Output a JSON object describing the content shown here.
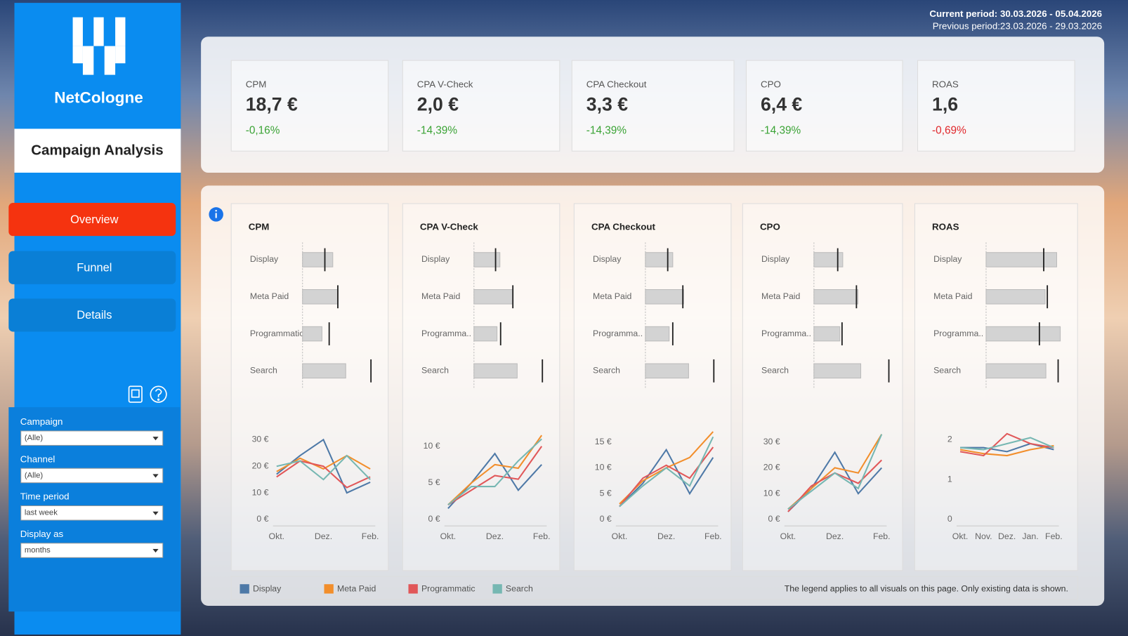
{
  "header": {
    "current": "Current period: 30.03.2026 - 05.04.2026",
    "previous": "Previous period:23.03.2026 - 29.03.2026"
  },
  "sidebar": {
    "brand": "NetCologne",
    "title": "Campaign Analysis",
    "nav": [
      "Overview",
      "Funnel",
      "Details"
    ],
    "filters": [
      {
        "label": "Campaign",
        "value": "(Alle)"
      },
      {
        "label": "Channel",
        "value": "(Alle)"
      },
      {
        "label": "Time period",
        "value": "last week"
      },
      {
        "label": "Display as",
        "value": "months"
      }
    ]
  },
  "kpis": [
    {
      "label": "CPM",
      "value": "18,7 €",
      "change": "-0,16%",
      "color": "#3aa335"
    },
    {
      "label": "CPA V-Check",
      "value": "2,0 €",
      "change": "-14,39%",
      "color": "#3aa335"
    },
    {
      "label": "CPA Checkout",
      "value": "3,3 €",
      "change": "-14,39%",
      "color": "#3aa335"
    },
    {
      "label": "CPO",
      "value": "6,4 €",
      "change": "-14,39%",
      "color": "#3aa335"
    },
    {
      "label": "ROAS",
      "value": "1,6",
      "change": "-0,69%",
      "color": "#e0262a"
    }
  ],
  "panels": [
    {
      "title": "CPM",
      "bullet": {
        "categories": [
          "Display",
          "Meta Paid",
          "Programmatic",
          "Search"
        ],
        "values": [
          42,
          49,
          27,
          60
        ],
        "targets": [
          31,
          49,
          37,
          95
        ],
        "xlim": [
          0,
          110
        ]
      },
      "line": {
        "categories": [
          "Okt.",
          null,
          "Dez.",
          null,
          "Feb."
        ],
        "ylim": [
          0,
          33
        ],
        "yticks": [
          {
            "value": 0,
            "label": "0 €"
          },
          {
            "value": 10,
            "label": "10 €"
          },
          {
            "value": 20,
            "label": "20 €"
          },
          {
            "value": 30,
            "label": "30 €"
          }
        ],
        "series": [
          [
            17,
            24,
            30,
            10,
            14
          ],
          [
            18,
            23,
            19,
            24,
            19
          ],
          [
            16,
            22,
            20,
            12,
            16
          ],
          [
            20,
            22,
            15,
            24,
            15
          ]
        ]
      }
    },
    {
      "title": "CPA V-Check",
      "bullet": {
        "categories": [
          "Display",
          "Meta Paid",
          "Programma..",
          "Search"
        ],
        "values": [
          36,
          54,
          32,
          60
        ],
        "targets": [
          30,
          54,
          37,
          95
        ],
        "xlim": [
          0,
          110
        ]
      },
      "line": {
        "categories": [
          "Okt.",
          null,
          "Dez.",
          null,
          "Feb."
        ],
        "ylim": [
          0,
          12
        ],
        "yticks": [
          {
            "value": 0,
            "label": "0 €"
          },
          {
            "value": 5,
            "label": "5 €"
          },
          {
            "value": 10,
            "label": "10 €"
          }
        ],
        "series": [
          [
            1.5,
            5,
            9,
            4,
            7.5
          ],
          [
            2,
            5,
            7.5,
            7,
            11.5
          ],
          [
            2,
            4,
            6,
            5.5,
            10
          ],
          [
            2,
            4.5,
            4.5,
            8,
            11
          ]
        ]
      }
    },
    {
      "title": "CPA Checkout",
      "bullet": {
        "categories": [
          "Display",
          "Meta Paid",
          "Programma..",
          "Search"
        ],
        "values": [
          38,
          53,
          33,
          60
        ],
        "targets": [
          31,
          52,
          38,
          95
        ],
        "xlim": [
          0,
          110
        ]
      },
      "line": {
        "categories": [
          "Okt.",
          null,
          "Dez.",
          null,
          "Feb."
        ],
        "ylim": [
          0,
          17
        ],
        "yticks": [
          {
            "value": 0,
            "label": "0 €"
          },
          {
            "value": 5,
            "label": "5 €"
          },
          {
            "value": 10,
            "label": "10 €"
          },
          {
            "value": 15,
            "label": "15 €"
          }
        ],
        "series": [
          [
            2.5,
            7,
            13.5,
            5,
            12
          ],
          [
            3,
            7.5,
            10,
            12,
            17
          ],
          [
            2.5,
            8,
            10.5,
            8,
            14
          ],
          [
            2.5,
            6.5,
            10,
            6.5,
            16
          ]
        ]
      }
    },
    {
      "title": "CPO",
      "bullet": {
        "categories": [
          "Display",
          "Meta Paid",
          "Programma..",
          "Search"
        ],
        "values": [
          40,
          61,
          36,
          65
        ],
        "targets": [
          33,
          59,
          39,
          104
        ],
        "xlim": [
          0,
          110
        ]
      },
      "line": {
        "categories": [
          "Okt.",
          null,
          "Dez.",
          null,
          "Feb."
        ],
        "ylim": [
          0,
          34
        ],
        "yticks": [
          {
            "value": 0,
            "label": "0 €"
          },
          {
            "value": 10,
            "label": "10 €"
          },
          {
            "value": 20,
            "label": "20 €"
          },
          {
            "value": 30,
            "label": "30 €"
          }
        ],
        "series": [
          [
            3,
            12,
            26,
            10,
            20
          ],
          [
            4,
            12,
            20,
            18,
            33
          ],
          [
            3,
            13,
            18,
            14,
            23
          ],
          [
            4,
            11,
            18,
            12,
            33
          ]
        ]
      }
    },
    {
      "title": "ROAS",
      "bullet": {
        "categories": [
          "Display",
          "Meta Paid",
          "Programma..",
          "Search"
        ],
        "values": [
          98,
          82,
          103,
          83
        ],
        "targets": [
          80,
          85,
          74,
          100
        ],
        "xlim": [
          0,
          110
        ]
      },
      "line": {
        "categories": [
          "Okt.",
          "Nov.",
          "Dez.",
          "Jan.",
          "Feb."
        ],
        "ylim": [
          0,
          2.2
        ],
        "yticks": [
          0,
          1,
          2
        ],
        "series": [
          [
            1.8,
            1.8,
            1.7,
            1.9,
            1.75
          ],
          [
            1.75,
            1.65,
            1.6,
            1.75,
            1.85
          ],
          [
            1.7,
            1.6,
            2.15,
            1.9,
            1.8
          ],
          [
            1.8,
            1.75,
            1.9,
            2.05,
            1.8
          ]
        ]
      }
    }
  ],
  "legend": {
    "series": [
      {
        "name": "Display",
        "color": "#4e79a7"
      },
      {
        "name": "Meta Paid",
        "color": "#f28e2b"
      },
      {
        "name": "Programmatic",
        "color": "#e15759"
      },
      {
        "name": "Search",
        "color": "#76b7b2"
      }
    ],
    "note": "The legend applies to all visuals on this page. Only existing data is shown."
  }
}
